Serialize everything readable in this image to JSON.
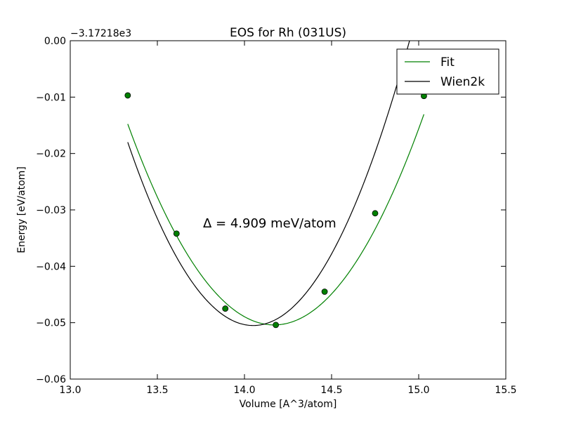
{
  "chart_data": {
    "type": "line",
    "title": "EOS for Rh (031US)",
    "xlabel": "Volume [A^3/atom]",
    "ylabel": "Energy [eV/atom]",
    "offset_label": "−3.17218e3",
    "annotation": "Δ = 4.909 meV/atom",
    "xlim": [
      13.0,
      15.5
    ],
    "ylim": [
      -0.06,
      0.0
    ],
    "xticks": [
      "13.0",
      "13.5",
      "14.0",
      "14.5",
      "15.0",
      "15.5"
    ],
    "yticks": [
      "0.00",
      "−0.01",
      "−0.02",
      "−0.03",
      "−0.04",
      "−0.05",
      "−0.06"
    ],
    "legend_position": "top-right",
    "grid": false,
    "series": [
      {
        "name": "Fit",
        "color": "#008000",
        "curve": {
          "v0": 14.17,
          "e0": -0.0504,
          "k": 0.0505,
          "x_range": [
            13.33,
            15.03
          ]
        },
        "points": [
          {
            "x": 13.33,
            "y": -0.0097
          },
          {
            "x": 13.61,
            "y": -0.0342
          },
          {
            "x": 13.89,
            "y": -0.0475
          },
          {
            "x": 14.18,
            "y": -0.0504
          },
          {
            "x": 14.46,
            "y": -0.0445
          },
          {
            "x": 14.75,
            "y": -0.0306
          },
          {
            "x": 15.03,
            "y": -0.0098
          }
        ]
      },
      {
        "name": "Wien2k",
        "color": "#000000",
        "curve": {
          "v0": 14.05,
          "e0": -0.0505,
          "k": 0.0627,
          "x_range": [
            13.33,
            14.99
          ]
        }
      }
    ]
  }
}
